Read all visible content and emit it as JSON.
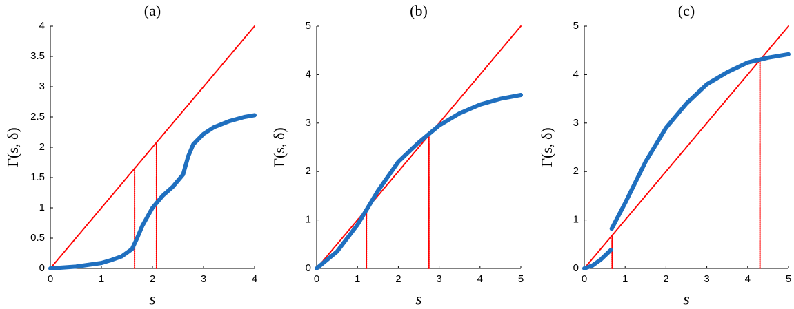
{
  "chart_data": [
    {
      "type": "line",
      "title": "(a)",
      "x_label": "s",
      "y_label": "Γ(s, δ)",
      "xlim": [
        0,
        4
      ],
      "ylim": [
        0,
        4
      ],
      "xticks": [
        0,
        1,
        2,
        3,
        4
      ],
      "yticks": [
        0,
        0.5,
        1,
        1.5,
        2,
        2.5,
        3,
        3.5,
        4
      ],
      "series": [
        {
          "color": "#ff0000",
          "line_style": "dotted",
          "x": [
            0,
            4
          ],
          "values": [
            0,
            4
          ]
        },
        {
          "color": "#ff0000",
          "line_style": "dotted",
          "x": [
            1.65,
            1.65
          ],
          "values": [
            0,
            1.65
          ]
        },
        {
          "color": "#ff0000",
          "line_style": "dotted",
          "x": [
            2.08,
            2.08
          ],
          "values": [
            0,
            2.08
          ]
        },
        {
          "color": "#1f6fbf",
          "line_style": "solid",
          "x": [
            0,
            0.5,
            1,
            1.2,
            1.4,
            1.6,
            1.7,
            1.8,
            1.9,
            2,
            2.1,
            2.2,
            2.4,
            2.6,
            2.7,
            2.8,
            3,
            3.2,
            3.5,
            3.8,
            4
          ],
          "values": [
            0,
            0.03,
            0.09,
            0.14,
            0.2,
            0.32,
            0.5,
            0.7,
            0.85,
            1.0,
            1.1,
            1.2,
            1.35,
            1.55,
            1.85,
            2.05,
            2.22,
            2.33,
            2.43,
            2.5,
            2.53
          ]
        }
      ]
    },
    {
      "type": "line",
      "title": "(b)",
      "x_label": "s",
      "y_label": "Γ(s, δ)",
      "xlim": [
        0,
        5
      ],
      "ylim": [
        0,
        5
      ],
      "xticks": [
        0,
        1,
        2,
        3,
        4,
        5
      ],
      "yticks": [
        0,
        1,
        2,
        3,
        4,
        5
      ],
      "series": [
        {
          "color": "#ff0000",
          "line_style": "dotted",
          "x": [
            0,
            5
          ],
          "values": [
            0,
            5
          ]
        },
        {
          "color": "#ff0000",
          "line_style": "dotted",
          "x": [
            1.22,
            1.22
          ],
          "values": [
            0,
            1.22
          ]
        },
        {
          "color": "#ff0000",
          "line_style": "dotted",
          "x": [
            2.75,
            2.75
          ],
          "values": [
            0,
            2.75
          ]
        },
        {
          "color": "#1f6fbf",
          "line_style": "solid",
          "x": [
            0,
            0.5,
            1,
            1.5,
            2,
            2.5,
            3,
            3.5,
            4,
            4.5,
            5
          ],
          "values": [
            0,
            0.35,
            0.9,
            1.6,
            2.2,
            2.6,
            2.95,
            3.2,
            3.38,
            3.5,
            3.58
          ]
        }
      ]
    },
    {
      "type": "line",
      "title": "(c)",
      "x_label": "s",
      "y_label": "Γ(s, δ)",
      "xlim": [
        0,
        5
      ],
      "ylim": [
        0,
        5
      ],
      "xticks": [
        0,
        1,
        2,
        3,
        4,
        5
      ],
      "yticks": [
        0,
        1,
        2,
        3,
        4,
        5
      ],
      "series": [
        {
          "color": "#ff0000",
          "line_style": "dotted",
          "x": [
            0,
            5
          ],
          "values": [
            0,
            5
          ]
        },
        {
          "color": "#ff0000",
          "line_style": "dotted",
          "x": [
            0.68,
            0.68
          ],
          "values": [
            0,
            0.68
          ]
        },
        {
          "color": "#ff0000",
          "line_style": "dotted",
          "x": [
            4.3,
            4.3
          ],
          "values": [
            0,
            4.3
          ]
        },
        {
          "color": "#1f6fbf",
          "line_style": "solid",
          "x": [
            0,
            0.2,
            0.4,
            0.65,
            0.66,
            0.67,
            1,
            1.5,
            2,
            2.5,
            3,
            3.5,
            4,
            4.5,
            5
          ],
          "values": [
            0,
            0.06,
            0.18,
            0.38,
            null,
            0.82,
            1.35,
            2.2,
            2.9,
            3.4,
            3.8,
            4.05,
            4.25,
            4.35,
            4.42
          ]
        }
      ]
    }
  ]
}
